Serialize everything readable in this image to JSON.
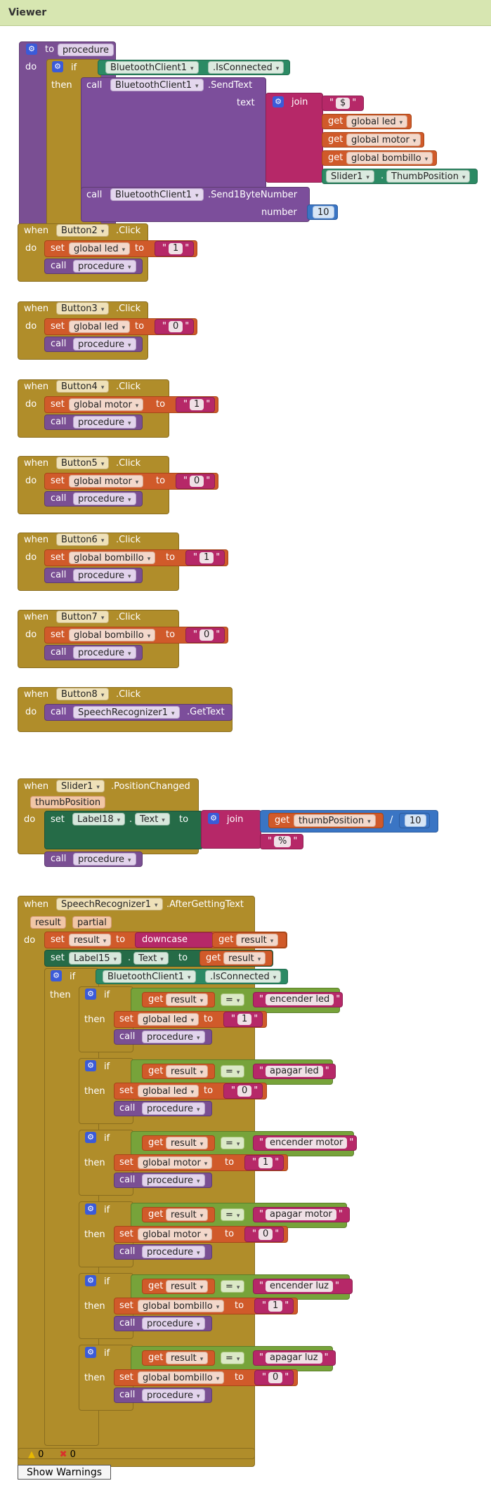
{
  "title": "Viewer",
  "kw": {
    "to": "to",
    "do": "do",
    "if": "if",
    "then": "then",
    "call": "call",
    "when": "when",
    "set": "set",
    "get": "get",
    "join": "join",
    "text": "text",
    "number": "number",
    "downcase": "downcase",
    "eq": "="
  },
  "procedure": "procedure",
  "bt": "BluetoothClient1",
  "isConnected": ".IsConnected",
  "sendText": ".SendText",
  "send1Byte": ".Send1ByteNumber",
  "str_dollar": "$",
  "v_led": "global led",
  "v_motor": "global motor",
  "v_bombillo": "global bombillo",
  "slider": "Slider1",
  "thumbPos": "ThumbPosition",
  "num10": "10",
  "click": ".Click",
  "b2": "Button2",
  "b3": "Button3",
  "b4": "Button4",
  "b5": "Button5",
  "b6": "Button6",
  "b7": "Button7",
  "b8": "Button8",
  "one": "1",
  "zero": "0",
  "speech": "SpeechRecognizer1",
  "getText": ".GetText",
  "posChanged": ".PositionChanged",
  "thumbPosition": "thumbPosition",
  "label18": "Label18",
  "textProp": "Text",
  "percent": "%",
  "afterText": ".AfterGettingText",
  "result": "result",
  "partial": "partial",
  "label15": "Label15",
  "c1": "encender led",
  "c2": "apagar led",
  "c3": "encender motor",
  "c4": "apagar motor",
  "c5": "encender luz",
  "c6": "apagar luz",
  "div": "/",
  "warnings": {
    "count": "0",
    "errors": "0",
    "button": "Show Warnings"
  },
  "colors": {
    "procedure": "#7a4f93",
    "control": "#b08d2a",
    "bluetooth": "#7c4e9b",
    "text": "#b62868",
    "variable": "#d05a2a",
    "math": "#3a75c4",
    "logic": "#77a33a",
    "component": "#2c6b4a"
  }
}
